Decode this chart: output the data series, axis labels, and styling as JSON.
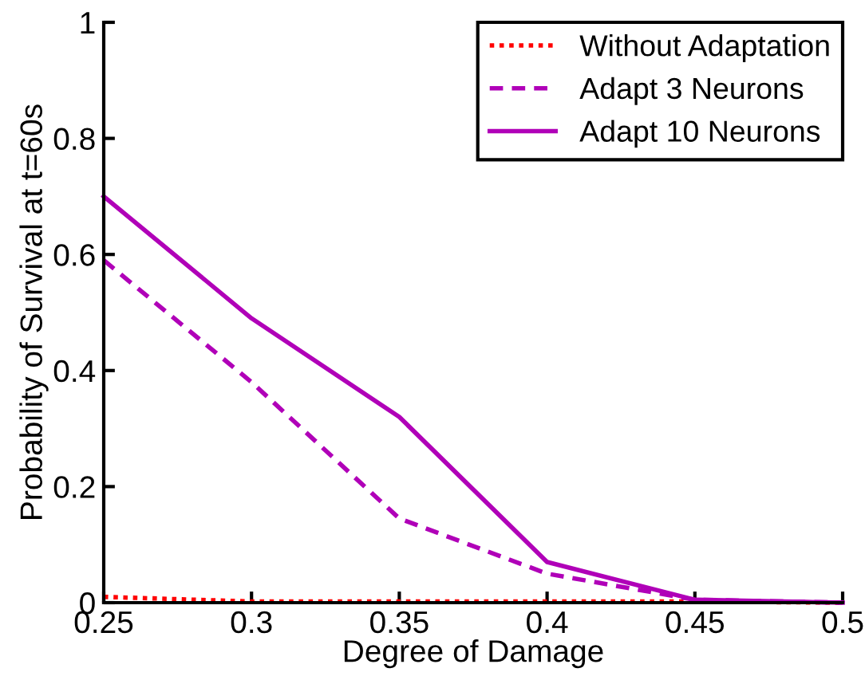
{
  "chart_data": {
    "type": "line",
    "xlabel": "Degree of Damage",
    "ylabel": "Probability of Survival at t=60s",
    "x": [
      0.25,
      0.3,
      0.35,
      0.4,
      0.45,
      0.5
    ],
    "series": [
      {
        "name": "Without Adaptation",
        "color": "#ff0000",
        "line_style": "dotted",
        "values": [
          0.01,
          0.002,
          0.002,
          0.002,
          0.002,
          0
        ]
      },
      {
        "name": "Adapt 3 Neurons",
        "color": "#b000b8",
        "line_style": "dashed",
        "values": [
          0.59,
          0.38,
          0.145,
          0.05,
          0.005,
          0
        ]
      },
      {
        "name": "Adapt 10 Neurons",
        "color": "#b000b8",
        "line_style": "solid",
        "values": [
          0.7,
          0.49,
          0.32,
          0.07,
          0.005,
          0
        ]
      }
    ],
    "xlim": [
      0.25,
      0.5
    ],
    "ylim": [
      0,
      1
    ],
    "xticks": [
      0.25,
      0.3,
      0.35,
      0.4,
      0.45,
      0.5
    ],
    "yticks": [
      0,
      0.2,
      0.4,
      0.6,
      0.8,
      1
    ],
    "grid": false,
    "legend": "top right"
  }
}
